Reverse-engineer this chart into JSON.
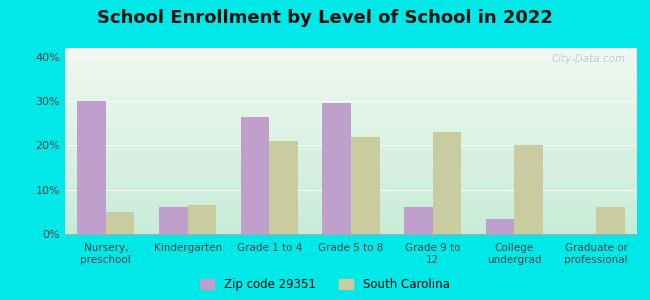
{
  "title": "School Enrollment by Level of School in 2022",
  "categories": [
    "Nursery,\npreschool",
    "Kindergarten",
    "Grade 1 to 4",
    "Grade 5 to 8",
    "Grade 9 to\n12",
    "College\nundergrad",
    "Graduate or\nprofessional"
  ],
  "zip_values": [
    30,
    6,
    26.5,
    29.5,
    6,
    3.5,
    0
  ],
  "sc_values": [
    5,
    6.5,
    21,
    22,
    23,
    20,
    6
  ],
  "zip_color": "#bf9fcc",
  "sc_color": "#c8cc9f",
  "background_outer": "#00e8e8",
  "background_inner_top": "#f0f8f0",
  "background_inner_bottom": "#c8ecd8",
  "title_fontsize": 13,
  "legend_zip_label": "Zip code 29351",
  "legend_sc_label": "South Carolina",
  "yticks": [
    0,
    10,
    20,
    30,
    40
  ],
  "ylim": [
    0,
    42
  ],
  "bar_width": 0.35,
  "watermark": "City-Data.com"
}
